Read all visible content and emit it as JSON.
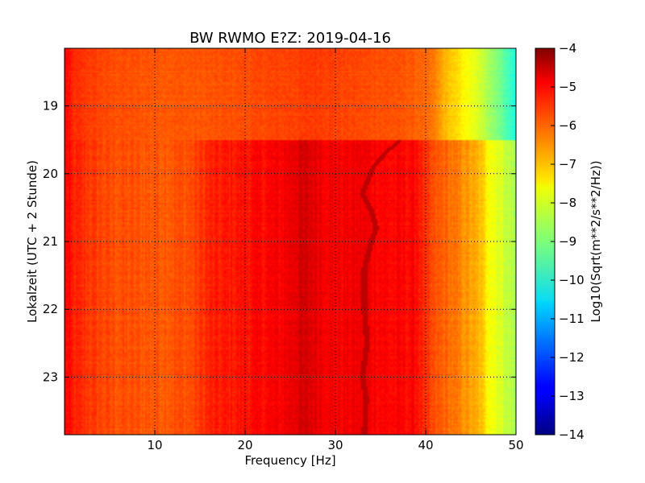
{
  "chart_data": {
    "type": "heatmap",
    "title": "BW RWMO E?Z: 2019-04-16",
    "xlabel": "Frequency [Hz]",
    "ylabel": "Lokalzeit (UTC + 2 Stunde)",
    "xlim": [
      0,
      50
    ],
    "ylim": [
      18.15,
      23.85
    ],
    "y_inverted": true,
    "x_ticks": [
      10,
      20,
      30,
      40,
      50
    ],
    "x_tick_labels": [
      "10",
      "20",
      "30",
      "40",
      "50"
    ],
    "y_ticks": [
      19,
      20,
      21,
      22,
      23
    ],
    "y_tick_labels": [
      "19",
      "20",
      "21",
      "22",
      "23"
    ],
    "grid": true,
    "colormap": "jet",
    "colorbar": {
      "label": "Log10(Sqrt(m**2/s**2/Hz))",
      "range": [
        -14,
        -4
      ],
      "ticks": [
        -4,
        -5,
        -6,
        -7,
        -8,
        -9,
        -10,
        -11,
        -12,
        -13,
        -14
      ],
      "tick_labels": [
        "−4",
        "−5",
        "−6",
        "−7",
        "−8",
        "−9",
        "−10",
        "−11",
        "−12",
        "−13",
        "−14"
      ]
    },
    "segment_change_hour": 19.5,
    "spectrum_before": {
      "frequency_hz": [
        0,
        1,
        5,
        10,
        15,
        20,
        25,
        28,
        30,
        34,
        38,
        40,
        41,
        42,
        44,
        46,
        48,
        50
      ],
      "level": [
        -5.2,
        -5.7,
        -6.0,
        -6.1,
        -6.1,
        -6.0,
        -5.9,
        -5.8,
        -5.9,
        -6.0,
        -6.1,
        -6.3,
        -6.5,
        -7.0,
        -7.6,
        -8.2,
        -9.0,
        -10.0
      ]
    },
    "spectrum_after": {
      "frequency_hz": [
        0,
        1,
        5,
        10,
        14,
        16,
        20,
        24,
        26,
        27,
        28,
        30,
        33,
        36,
        39,
        40,
        41,
        42,
        44,
        46,
        47,
        48,
        50
      ],
      "level": [
        -5.2,
        -5.6,
        -6.0,
        -6.1,
        -6.0,
        -5.6,
        -5.4,
        -5.2,
        -4.9,
        -4.9,
        -5.0,
        -5.2,
        -5.1,
        -5.3,
        -5.3,
        -5.8,
        -6.1,
        -6.2,
        -6.6,
        -7.1,
        -7.7,
        -8.0,
        -8.6
      ]
    },
    "tonal_line": {
      "level": -4.6,
      "hour": [
        19.5,
        19.7,
        19.9,
        20.1,
        20.3,
        20.55,
        20.8,
        21.0,
        21.4,
        22.0,
        22.5,
        23.0,
        23.3,
        23.85
      ],
      "frequency_hz": [
        37.2,
        35.5,
        34.2,
        33.6,
        33.0,
        34.0,
        34.5,
        34.0,
        33.2,
        33.2,
        33.5,
        33.0,
        33.4,
        33.2
      ]
    }
  }
}
